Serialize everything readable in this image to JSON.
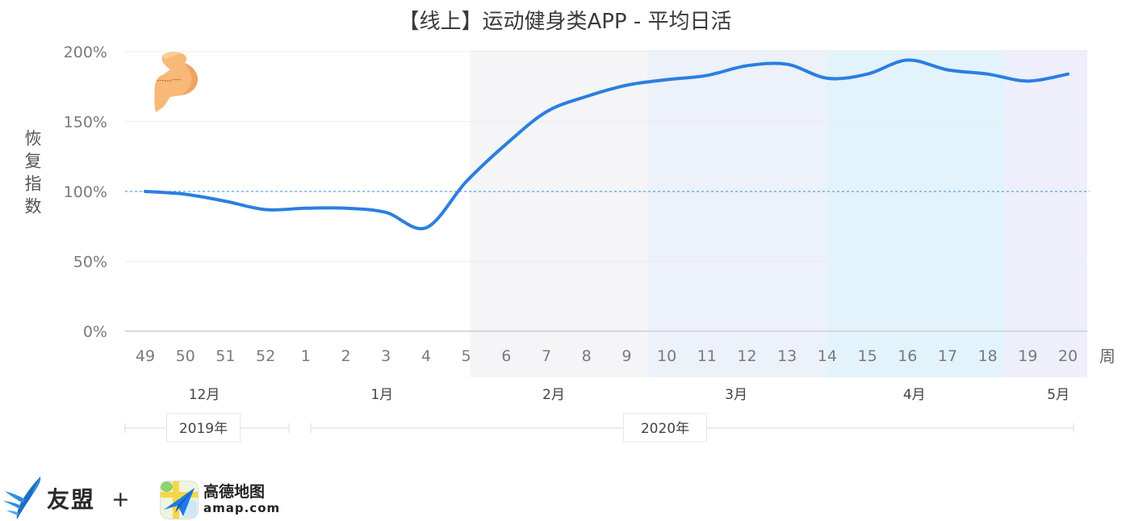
{
  "chart_data": {
    "type": "line",
    "title": "【线上】运动健身类APP - 平均日活",
    "ylabel": "恢复指数",
    "xlabel": "周",
    "categories": [
      "49",
      "50",
      "51",
      "52",
      "1",
      "2",
      "3",
      "4",
      "5",
      "6",
      "7",
      "8",
      "9",
      "10",
      "11",
      "12",
      "13",
      "14",
      "15",
      "16",
      "17",
      "18",
      "19",
      "20"
    ],
    "series": [
      {
        "values": [
          100,
          98,
          93,
          87,
          88,
          88,
          85,
          74,
          107,
          134,
          157,
          168,
          176,
          180,
          183,
          190,
          191,
          181,
          184,
          194,
          187,
          184,
          179,
          184
        ],
        "color": "#2a7fe0"
      }
    ],
    "ylim": [
      0,
      200
    ],
    "yticks": [
      0,
      50,
      100,
      150,
      200
    ],
    "ytick_labels": [
      "0%",
      "50%",
      "100%",
      "150%",
      "200%"
    ],
    "reference_line": {
      "value": 100,
      "style": "dashed",
      "color": "#3a8ccf"
    },
    "months": [
      {
        "label": "12月",
        "band": null
      },
      {
        "label": "1月",
        "band": null
      },
      {
        "label": "2月",
        "band": "#f5f5f7"
      },
      {
        "label": "3月",
        "band": "#ecf1fa"
      },
      {
        "label": "4月",
        "band": "#e3f3fb"
      },
      {
        "label": "5月",
        "band": "#eeeffb"
      }
    ],
    "years": [
      "2019年",
      "2020年"
    ],
    "smooth": true,
    "grid": true,
    "legend": "none"
  },
  "icons": {
    "decoration": "flexed-biceps-icon",
    "umeng_logo": "umeng-bird-logo-icon",
    "amap_logo": "amap-app-icon"
  },
  "logos": {
    "umeng": {
      "text": "友盟",
      "plus": "+"
    },
    "amap": {
      "name": "高德地图",
      "domain": "amap.com"
    }
  }
}
